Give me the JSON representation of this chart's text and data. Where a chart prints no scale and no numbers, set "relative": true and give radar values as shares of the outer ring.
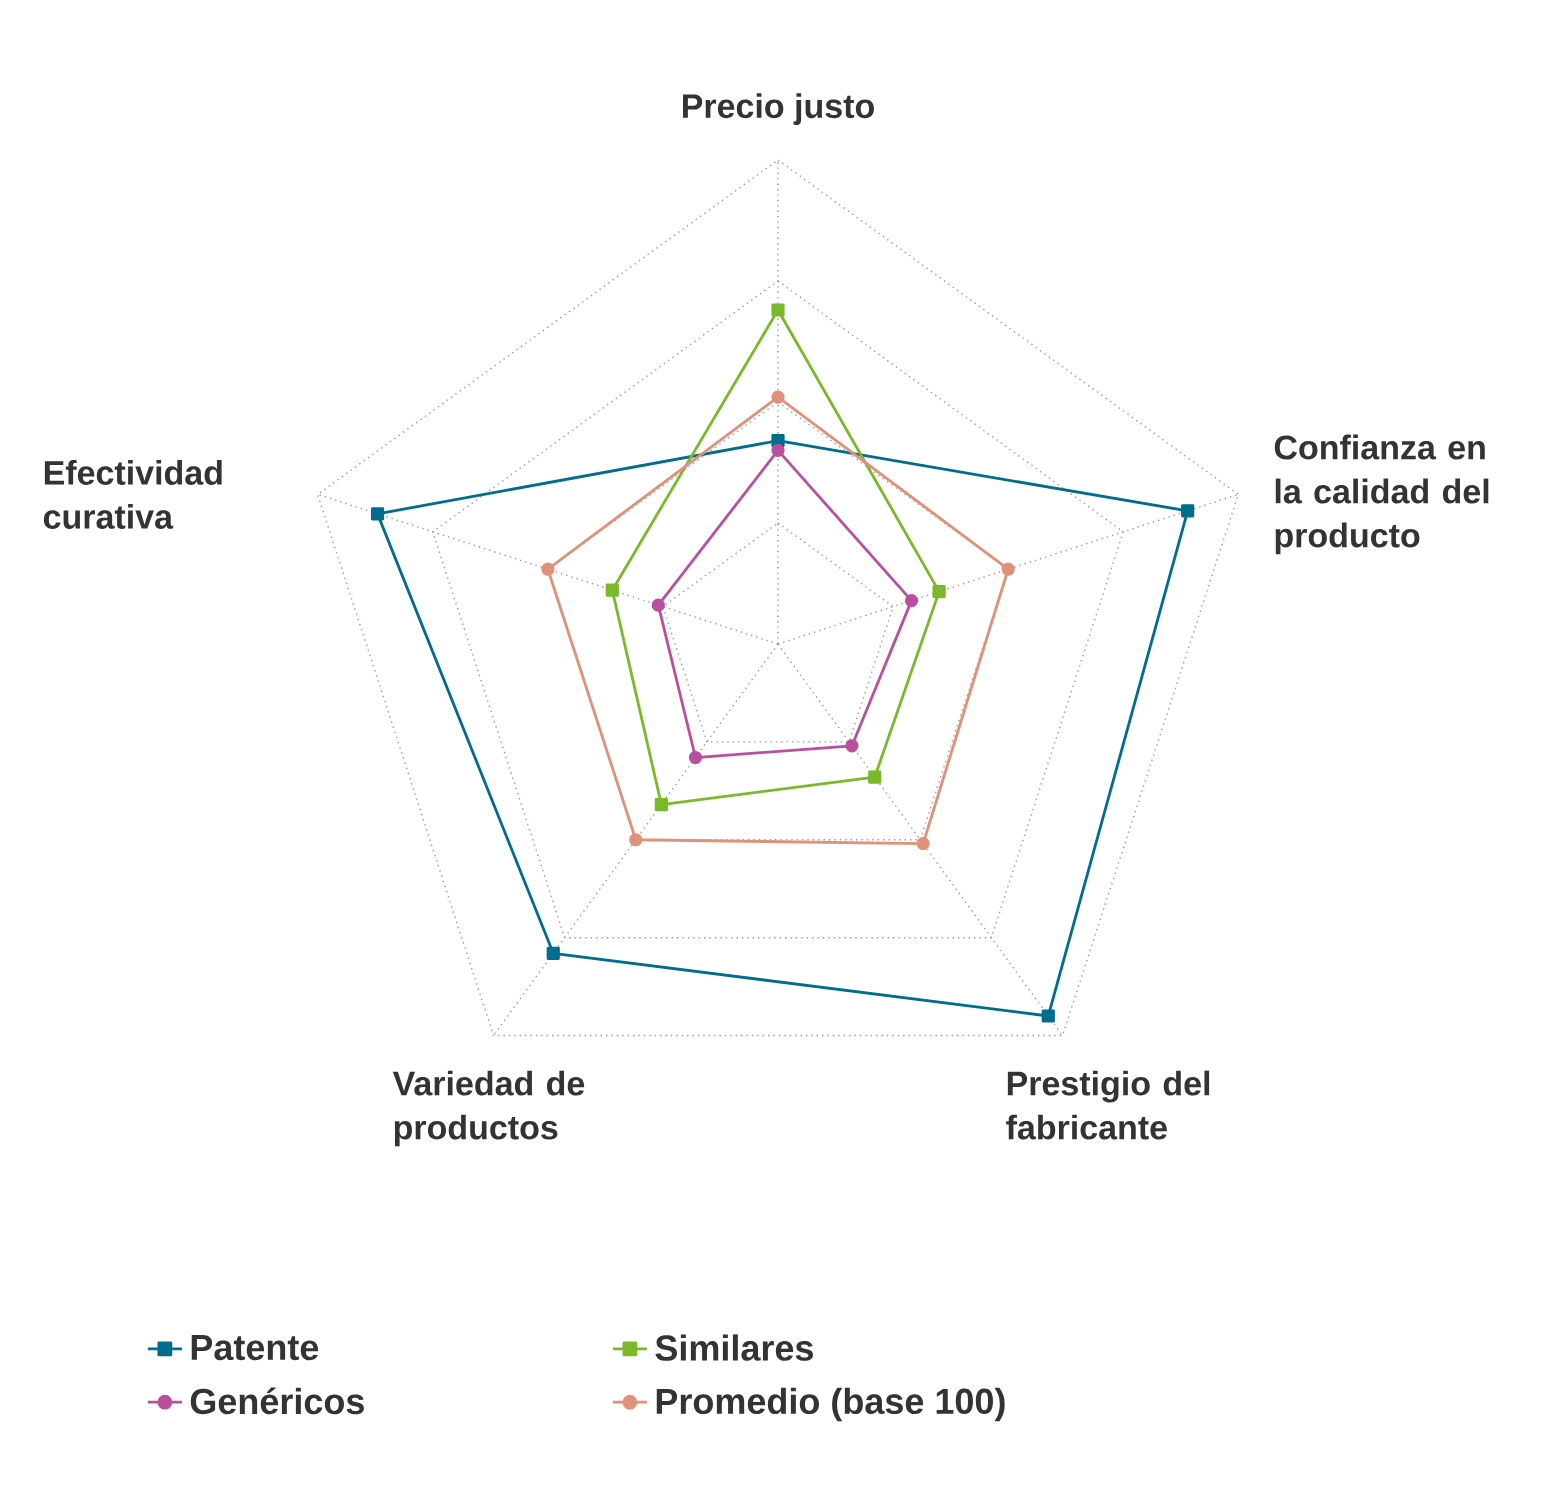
{
  "chart_data": {
    "type": "radar",
    "relative": true,
    "grid": true,
    "legend": "bottom",
    "categories": [
      "Precio justo",
      "Confianza en la calidad del producto",
      "Prestigio del fabricante",
      "Variedad de productos",
      "Efectividad curativa"
    ],
    "series": [
      {
        "name": "Patente",
        "color": "#006d8f",
        "marker": "square",
        "values": [
          0.42,
          0.89,
          0.95,
          0.79,
          0.87
        ]
      },
      {
        "name": "Similares",
        "color": "#7ab929",
        "marker": "square",
        "values": [
          0.69,
          0.35,
          0.34,
          0.41,
          0.36
        ]
      },
      {
        "name": "Genéricos",
        "color": "#b94f9e",
        "marker": "circle",
        "values": [
          0.4,
          0.29,
          0.26,
          0.29,
          0.26
        ]
      },
      {
        "name": "Promedio (base 100)",
        "color": "#e0917a",
        "marker": "circle",
        "values": [
          0.51,
          0.5,
          0.51,
          0.5,
          0.5
        ]
      }
    ]
  }
}
